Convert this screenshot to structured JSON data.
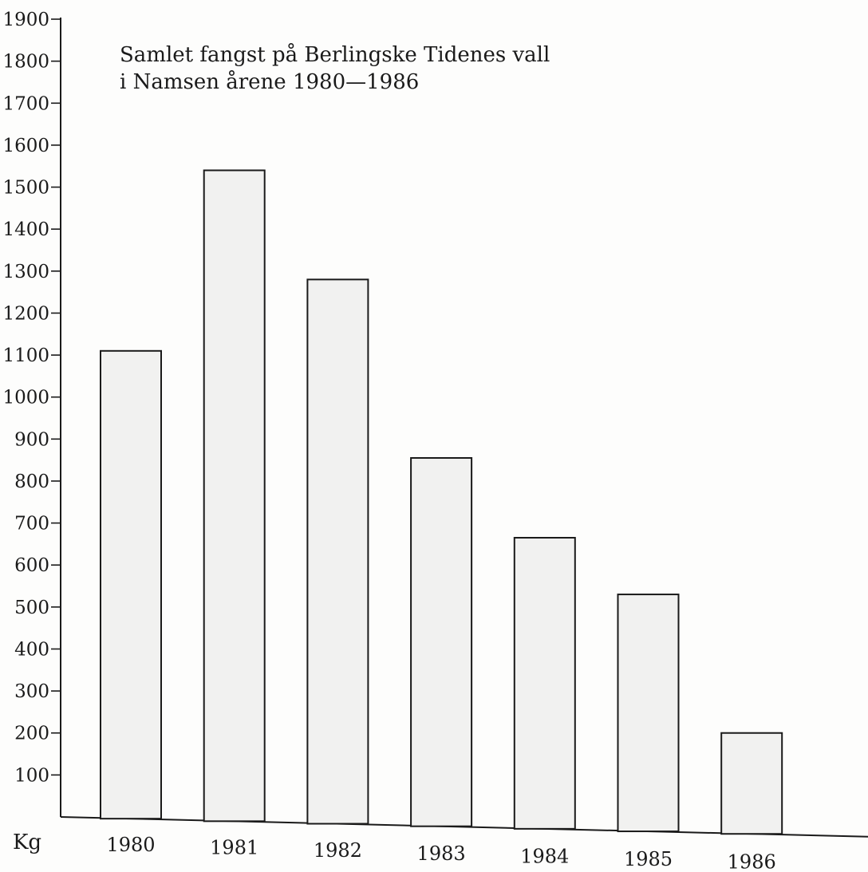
{
  "chart_data": {
    "type": "bar",
    "title": [
      "Samlet fangst på Berlingske Tidenes vall",
      "i Namsen årene 1980—1986"
    ],
    "categories": [
      "1980",
      "1981",
      "1982",
      "1983",
      "1984",
      "1985",
      "1986"
    ],
    "values": [
      1110,
      1540,
      1280,
      855,
      665,
      530,
      200
    ],
    "ylabel": "Kg",
    "yticks": [
      100,
      200,
      300,
      400,
      500,
      600,
      700,
      800,
      900,
      1000,
      1100,
      1200,
      1300,
      1400,
      1500,
      1600,
      1700,
      1800,
      1900
    ],
    "ylim": [
      0,
      1900
    ],
    "grid": false,
    "colors": {
      "bar_fill": "#f1f1f0",
      "line": "#1a1a1a"
    }
  }
}
